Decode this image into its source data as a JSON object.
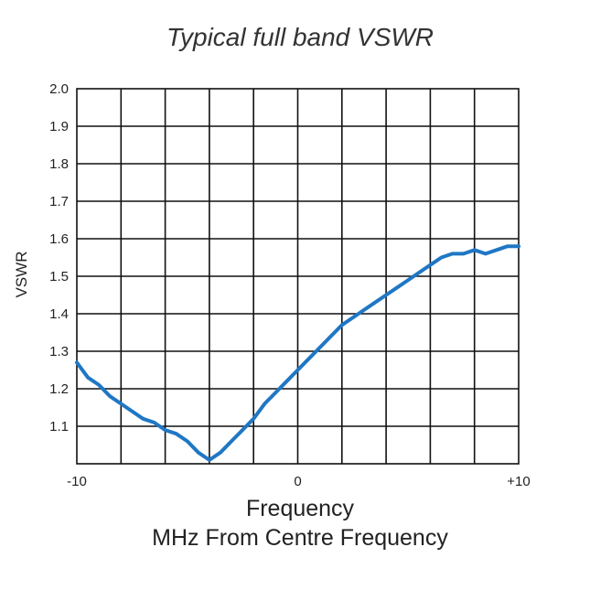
{
  "chart_data": {
    "type": "line",
    "title": "Typical full band VSWR",
    "xlabel": "Frequency",
    "xlabel_sub": "MHz From Centre Frequency",
    "ylabel": "VSWR",
    "xlim": [
      -10,
      10
    ],
    "ylim": [
      1.0,
      2.0
    ],
    "grid": true,
    "x_grid_lines": 10,
    "y_ticks": [
      1.1,
      1.2,
      1.3,
      1.4,
      1.5,
      1.6,
      1.7,
      1.8,
      1.9,
      2.0
    ],
    "y_tick_labels": [
      "1.1",
      "1.2",
      "1.3",
      "1.4",
      "1.5",
      "1.6",
      "1.7",
      "1.8",
      "1.9",
      "2.0"
    ],
    "x_ticks": [
      -10,
      0,
      10
    ],
    "x_tick_labels": [
      "-10",
      "0",
      "+10"
    ],
    "series": [
      {
        "name": "VSWR",
        "color": "#1f77c4",
        "x": [
          -10,
          -9.5,
          -9,
          -8.5,
          -8,
          -7.5,
          -7,
          -6.5,
          -6,
          -5.5,
          -5,
          -4.5,
          -4,
          -3.5,
          -3,
          -2.5,
          -2,
          -1.5,
          -1,
          -0.5,
          0,
          0.5,
          1,
          1.5,
          2,
          2.5,
          3,
          3.5,
          4,
          4.5,
          5,
          5.5,
          6,
          6.5,
          7,
          7.5,
          8,
          8.5,
          9,
          9.5,
          10
        ],
        "y": [
          1.27,
          1.23,
          1.21,
          1.18,
          1.16,
          1.14,
          1.12,
          1.11,
          1.09,
          1.08,
          1.06,
          1.03,
          1.01,
          1.03,
          1.06,
          1.09,
          1.12,
          1.16,
          1.19,
          1.22,
          1.25,
          1.28,
          1.31,
          1.34,
          1.37,
          1.39,
          1.41,
          1.43,
          1.45,
          1.47,
          1.49,
          1.51,
          1.53,
          1.55,
          1.56,
          1.56,
          1.57,
          1.56,
          1.57,
          1.58,
          1.58
        ]
      }
    ]
  }
}
